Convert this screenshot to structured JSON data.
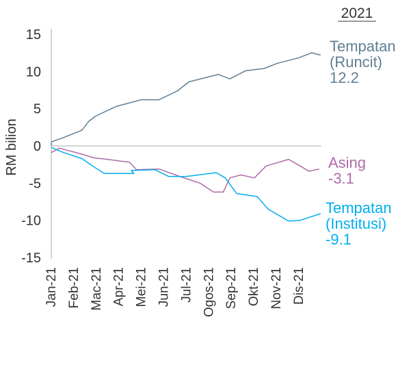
{
  "chart_data": {
    "type": "line",
    "title": "2021",
    "xlabel": "",
    "ylabel": "RM bilion",
    "ylim": [
      -15,
      15
    ],
    "yticks": [
      15,
      10,
      5,
      0,
      -5,
      -10,
      -15
    ],
    "x_unit": "months since Jan-21",
    "xticks": [
      "Jan-21",
      "Feb-21",
      "Mac-21",
      "Apr-21",
      "Mei-21",
      "Jun-21",
      "Jul-21",
      "Ogos-21",
      "Sep-21",
      "Okt-21",
      "Nov-21",
      "Dis-21"
    ],
    "grid": false,
    "series": [
      {
        "name": "Tempatan (Runcit)",
        "label_lines": [
          "Tempatan",
          "(Runcit)",
          "12.2"
        ],
        "color": "#5f7f94",
        "x": [
          0,
          0.01,
          0.45,
          1.36,
          1.67,
          1.97,
          2.88,
          4.0,
          4.79,
          5.61,
          6.12,
          7.42,
          7.94,
          8.64,
          9.45,
          10.06,
          10.97,
          11.58,
          11.97
        ],
        "y": [
          0,
          0.55,
          1.0,
          2.1,
          3.3,
          4.0,
          5.3,
          6.2,
          6.2,
          7.4,
          8.6,
          9.6,
          9.0,
          10.1,
          10.4,
          11.1,
          11.8,
          12.5,
          12.2
        ]
      },
      {
        "name": "Asing",
        "label_lines": [
          "Asing",
          "-3.1"
        ],
        "color": "#b06aa6",
        "x": [
          0,
          0.36,
          1.36,
          1.88,
          2.48,
          3.48,
          3.79,
          4.79,
          5.61,
          6.61,
          7.21,
          7.64,
          7.94,
          8.42,
          9.03,
          9.55,
          10.55,
          11.06,
          11.45,
          11.91
        ],
        "y": [
          -0.9,
          -0.3,
          -1.1,
          -1.6,
          -1.8,
          -2.2,
          -3.2,
          -3.1,
          -4.0,
          -5.0,
          -6.2,
          -6.2,
          -4.3,
          -3.9,
          -4.3,
          -2.7,
          -1.8,
          -2.7,
          -3.4,
          -3.1
        ]
      },
      {
        "name": "Tempatan (Institusi)",
        "label_lines": [
          "Tempatan",
          "(Institusi)",
          "-9.1"
        ],
        "color": "#00aeef",
        "x": [
          0,
          0.55,
          1.36,
          1.88,
          2.36,
          3.67,
          3.55,
          4.61,
          5.21,
          6.0,
          7.33,
          7.73,
          8.24,
          9.15,
          9.64,
          10.55,
          11.06,
          11.97
        ],
        "y": [
          -0.2,
          -0.9,
          -1.7,
          -2.8,
          -3.7,
          -3.7,
          -3.3,
          -3.2,
          -4.1,
          -4.1,
          -3.6,
          -4.3,
          -6.4,
          -6.8,
          -8.5,
          -10.1,
          -10.0,
          -9.1
        ]
      }
    ]
  }
}
